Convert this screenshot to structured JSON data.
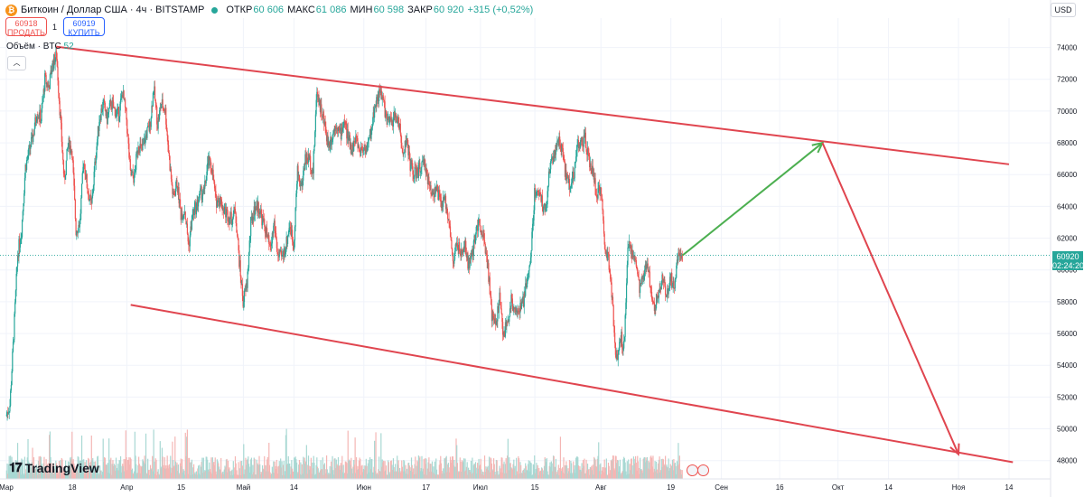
{
  "header": {
    "symbol": "Биткоин / Доллар США · 4ч · BITSTAMP",
    "open_label": "ОТКР",
    "open_value": "60 606",
    "high_label": "МАКС",
    "high_value": "61 086",
    "low_label": "МИН",
    "low_value": "60 598",
    "close_label": "ЗАКР",
    "close_value": "60 920",
    "change": "+315 (+0,52%)"
  },
  "trade": {
    "sell_price": "60918",
    "sell_label": "ПРОДАТЬ",
    "spread": "1",
    "buy_price": "60919",
    "buy_label": "КУПИТЬ"
  },
  "volume_indicator": {
    "label": "Объём · BTC",
    "value": "52"
  },
  "currency": "USD",
  "last_price": {
    "price": "60920",
    "countdown": "02:24:20"
  },
  "logo_text": "TradingView",
  "icons": {
    "coin": "bitcoin-icon",
    "collapse": "chevron-up-icon",
    "logo": "tradingview-logo-icon",
    "flag": "us-flag-icon"
  },
  "colors": {
    "up": "#26a69a",
    "down": "#ef5350",
    "channel": "#e0454f",
    "forecast_up": "#4caf50",
    "forecast_down": "#e0454f"
  },
  "chart_data": {
    "type": "candlestick",
    "y_ticks": [
      48000,
      50000,
      52000,
      54000,
      56000,
      58000,
      60000,
      62000,
      64000,
      66000,
      68000,
      70000,
      72000,
      74000
    ],
    "y_tick_labels": [
      "48000",
      "50000",
      "52000",
      "54000",
      "56000",
      "58000",
      "60000",
      "62000",
      "64000",
      "66000",
      "68000",
      "70000",
      "72000",
      "74000"
    ],
    "ylim": [
      47700,
      75000
    ],
    "x_ticks": [
      {
        "date": "2024-03-01",
        "label": "Мар"
      },
      {
        "date": "2024-03-18",
        "label": "18"
      },
      {
        "date": "2024-04-01",
        "label": "Апр"
      },
      {
        "date": "2024-04-15",
        "label": "15"
      },
      {
        "date": "2024-05-01",
        "label": "Май"
      },
      {
        "date": "2024-05-14",
        "label": "14"
      },
      {
        "date": "2024-06-01",
        "label": "Июн"
      },
      {
        "date": "2024-06-17",
        "label": "17"
      },
      {
        "date": "2024-07-01",
        "label": "Июл"
      },
      {
        "date": "2024-07-15",
        "label": "15"
      },
      {
        "date": "2024-08-01",
        "label": "Авг"
      },
      {
        "date": "2024-08-19",
        "label": "19"
      },
      {
        "date": "2024-09-01",
        "label": "Сен"
      },
      {
        "date": "2024-09-16",
        "label": "16"
      },
      {
        "date": "2024-10-01",
        "label": "Окт"
      },
      {
        "date": "2024-10-14",
        "label": "14"
      },
      {
        "date": "2024-11-01",
        "label": "Ноя"
      },
      {
        "date": "2024-11-14",
        "label": "14"
      }
    ],
    "xlim": [
      "2024-03-01",
      "2024-11-24"
    ],
    "price_path": [
      [
        "2024-03-01",
        50800
      ],
      [
        "2024-03-02",
        51500
      ],
      [
        "2024-03-03",
        56000
      ],
      [
        "2024-03-04",
        61000
      ],
      [
        "2024-03-05",
        62500
      ],
      [
        "2024-03-06",
        66500
      ],
      [
        "2024-03-07",
        67500
      ],
      [
        "2024-03-08",
        68500
      ],
      [
        "2024-03-09",
        70000
      ],
      [
        "2024-03-10",
        69500
      ],
      [
        "2024-03-11",
        72000
      ],
      [
        "2024-03-12",
        71500
      ],
      [
        "2024-03-13",
        73000
      ],
      [
        "2024-03-14",
        73500
      ],
      [
        "2024-03-15",
        69500
      ],
      [
        "2024-03-16",
        65500
      ],
      [
        "2024-03-17",
        68000
      ],
      [
        "2024-03-18",
        67500
      ],
      [
        "2024-03-19",
        62500
      ],
      [
        "2024-03-20",
        63000
      ],
      [
        "2024-03-21",
        67000
      ],
      [
        "2024-03-22",
        65000
      ],
      [
        "2024-03-23",
        64000
      ],
      [
        "2024-03-24",
        67000
      ],
      [
        "2024-03-25",
        69500
      ],
      [
        "2024-03-26",
        70500
      ],
      [
        "2024-03-27",
        69500
      ],
      [
        "2024-03-28",
        70500
      ],
      [
        "2024-03-29",
        70000
      ],
      [
        "2024-03-30",
        69800
      ],
      [
        "2024-03-31",
        71200
      ],
      [
        "2024-04-01",
        69500
      ],
      [
        "2024-04-02",
        66000
      ],
      [
        "2024-04-03",
        65800
      ],
      [
        "2024-04-04",
        68000
      ],
      [
        "2024-04-05",
        67500
      ],
      [
        "2024-04-06",
        68500
      ],
      [
        "2024-04-07",
        69000
      ],
      [
        "2024-04-08",
        71500
      ],
      [
        "2024-04-09",
        69200
      ],
      [
        "2024-04-10",
        70500
      ],
      [
        "2024-04-11",
        70000
      ],
      [
        "2024-04-12",
        67000
      ],
      [
        "2024-04-13",
        64500
      ],
      [
        "2024-04-14",
        65500
      ],
      [
        "2024-04-15",
        63500
      ],
      [
        "2024-04-16",
        63800
      ],
      [
        "2024-04-17",
        61500
      ],
      [
        "2024-04-18",
        63500
      ],
      [
        "2024-04-19",
        64000
      ],
      [
        "2024-04-20",
        64800
      ],
      [
        "2024-04-21",
        64900
      ],
      [
        "2024-04-22",
        66800
      ],
      [
        "2024-04-23",
        66400
      ],
      [
        "2024-04-24",
        64300
      ],
      [
        "2024-04-25",
        64500
      ],
      [
        "2024-04-26",
        63800
      ],
      [
        "2024-04-27",
        63500
      ],
      [
        "2024-04-28",
        63200
      ],
      [
        "2024-04-29",
        63800
      ],
      [
        "2024-04-30",
        60600
      ],
      [
        "2024-05-01",
        58000
      ],
      [
        "2024-05-02",
        59100
      ],
      [
        "2024-05-03",
        62900
      ],
      [
        "2024-05-04",
        63900
      ],
      [
        "2024-05-05",
        64000
      ],
      [
        "2024-05-06",
        63100
      ],
      [
        "2024-05-07",
        62300
      ],
      [
        "2024-05-08",
        61200
      ],
      [
        "2024-05-09",
        63000
      ],
      [
        "2024-05-10",
        60800
      ],
      [
        "2024-05-11",
        60800
      ],
      [
        "2024-05-12",
        61500
      ],
      [
        "2024-05-13",
        62900
      ],
      [
        "2024-05-14",
        61500
      ],
      [
        "2024-05-15",
        66200
      ],
      [
        "2024-05-16",
        65200
      ],
      [
        "2024-05-17",
        67000
      ],
      [
        "2024-05-18",
        67000
      ],
      [
        "2024-05-19",
        66200
      ],
      [
        "2024-05-20",
        71400
      ],
      [
        "2024-05-21",
        70100
      ],
      [
        "2024-05-22",
        69100
      ],
      [
        "2024-05-23",
        67900
      ],
      [
        "2024-05-24",
        68500
      ],
      [
        "2024-05-25",
        69300
      ],
      [
        "2024-05-26",
        68500
      ],
      [
        "2024-05-27",
        69400
      ],
      [
        "2024-05-28",
        68300
      ],
      [
        "2024-05-29",
        67600
      ],
      [
        "2024-05-30",
        68300
      ],
      [
        "2024-05-31",
        67500
      ],
      [
        "2024-06-01",
        67700
      ],
      [
        "2024-06-02",
        67700
      ],
      [
        "2024-06-03",
        68800
      ],
      [
        "2024-06-04",
        70500
      ],
      [
        "2024-06-05",
        71100
      ],
      [
        "2024-06-06",
        70800
      ],
      [
        "2024-06-07",
        69300
      ],
      [
        "2024-06-08",
        69300
      ],
      [
        "2024-06-09",
        69600
      ],
      [
        "2024-06-10",
        69500
      ],
      [
        "2024-06-11",
        67300
      ],
      [
        "2024-06-12",
        68200
      ],
      [
        "2024-06-13",
        66700
      ],
      [
        "2024-06-14",
        66000
      ],
      [
        "2024-06-15",
        66200
      ],
      [
        "2024-06-16",
        66600
      ],
      [
        "2024-06-17",
        66500
      ],
      [
        "2024-06-18",
        65100
      ],
      [
        "2024-06-19",
        65000
      ],
      [
        "2024-06-20",
        64900
      ],
      [
        "2024-06-21",
        64100
      ],
      [
        "2024-06-22",
        64300
      ],
      [
        "2024-06-23",
        63200
      ],
      [
        "2024-06-24",
        60300
      ],
      [
        "2024-06-25",
        61800
      ],
      [
        "2024-06-26",
        60800
      ],
      [
        "2024-06-27",
        61600
      ],
      [
        "2024-06-28",
        60300
      ],
      [
        "2024-06-29",
        60900
      ],
      [
        "2024-06-30",
        62700
      ],
      [
        "2024-07-01",
        62900
      ],
      [
        "2024-07-02",
        62100
      ],
      [
        "2024-07-03",
        60200
      ],
      [
        "2024-07-04",
        57000
      ],
      [
        "2024-07-05",
        56600
      ],
      [
        "2024-07-06",
        58200
      ],
      [
        "2024-07-07",
        55900
      ],
      [
        "2024-07-08",
        56700
      ],
      [
        "2024-07-09",
        58000
      ],
      [
        "2024-07-10",
        57700
      ],
      [
        "2024-07-11",
        57300
      ],
      [
        "2024-07-12",
        57900
      ],
      [
        "2024-07-13",
        59200
      ],
      [
        "2024-07-14",
        60800
      ],
      [
        "2024-07-15",
        64800
      ],
      [
        "2024-07-16",
        65100
      ],
      [
        "2024-07-17",
        64100
      ],
      [
        "2024-07-18",
        63900
      ],
      [
        "2024-07-19",
        66700
      ],
      [
        "2024-07-20",
        67200
      ],
      [
        "2024-07-21",
        68200
      ],
      [
        "2024-07-22",
        67600
      ],
      [
        "2024-07-23",
        66000
      ],
      [
        "2024-07-24",
        65400
      ],
      [
        "2024-07-25",
        65800
      ],
      [
        "2024-07-26",
        67900
      ],
      [
        "2024-07-27",
        67900
      ],
      [
        "2024-07-28",
        68200
      ],
      [
        "2024-07-29",
        66800
      ],
      [
        "2024-07-30",
        66200
      ],
      [
        "2024-07-31",
        64600
      ],
      [
        "2024-08-01",
        65300
      ],
      [
        "2024-08-02",
        61500
      ],
      [
        "2024-08-03",
        60700
      ],
      [
        "2024-08-04",
        58100
      ],
      [
        "2024-08-05",
        54000
      ],
      [
        "2024-08-06",
        56000
      ],
      [
        "2024-08-07",
        55100
      ],
      [
        "2024-08-08",
        61700
      ],
      [
        "2024-08-09",
        60900
      ],
      [
        "2024-08-10",
        60900
      ],
      [
        "2024-08-11",
        58700
      ],
      [
        "2024-08-12",
        59400
      ],
      [
        "2024-08-13",
        60600
      ],
      [
        "2024-08-14",
        58700
      ],
      [
        "2024-08-15",
        57600
      ],
      [
        "2024-08-16",
        58900
      ],
      [
        "2024-08-17",
        59500
      ],
      [
        "2024-08-18",
        58400
      ],
      [
        "2024-08-19",
        59500
      ],
      [
        "2024-08-20",
        59000
      ],
      [
        "2024-08-21",
        61200
      ],
      [
        "2024-08-22",
        60920
      ]
    ],
    "annotations": [
      {
        "type": "channel-upper",
        "from": {
          "date": "2024-03-14",
          "price": 74050
        },
        "to": {
          "date": "2024-11-14",
          "price": 66650
        }
      },
      {
        "type": "channel-lower",
        "from": {
          "date": "2024-04-02",
          "price": 57800
        },
        "to": {
          "date": "2024-11-15",
          "price": 47900
        }
      },
      {
        "type": "arrow-up",
        "from": {
          "date": "2024-08-22",
          "price": 60920
        },
        "to": {
          "date": "2024-09-27",
          "price": 68000
        }
      },
      {
        "type": "arrow-down",
        "from": {
          "date": "2024-09-27",
          "price": 68000
        },
        "to": {
          "date": "2024-11-01",
          "price": 48400
        }
      }
    ]
  }
}
